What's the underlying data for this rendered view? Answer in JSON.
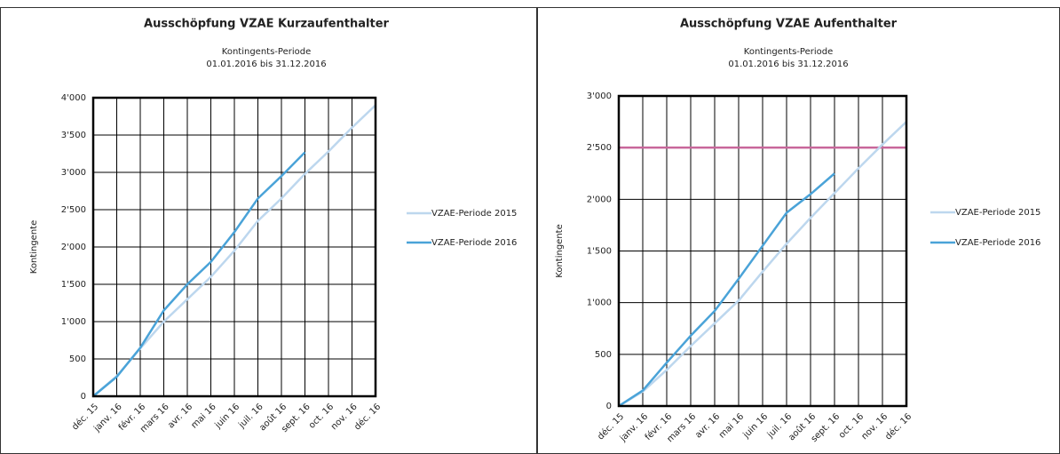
{
  "chart_data": [
    {
      "type": "line",
      "title": "Ausschöpfung VZAE Kurzaufenthalter",
      "subtitle": [
        "Kontingents-Periode",
        "01.01.2016 bis 31.12.2016"
      ],
      "y_label": "Kontingente",
      "categories": [
        "déc. 15",
        "janv. 16",
        "févr. 16",
        "mars 16",
        "avr. 16",
        "mai 16",
        "juin 16",
        "juil. 16",
        "août 16",
        "sept. 16",
        "oct. 16",
        "nov. 16",
        "déc. 16"
      ],
      "series": [
        {
          "name": "VZAE-Periode 2015",
          "color": "#bdd7ee",
          "values": [
            0,
            270,
            640,
            1000,
            1300,
            1600,
            1950,
            2350,
            2650,
            2980,
            3280,
            3600,
            3900
          ]
        },
        {
          "name": "VZAE-Periode 2016",
          "color": "#4aa3d8",
          "values": [
            0,
            260,
            650,
            1150,
            1500,
            1800,
            2200,
            2650,
            2950,
            3270,
            null,
            null,
            null
          ]
        }
      ],
      "ylim": [
        0,
        4000
      ],
      "yticks": [
        0,
        500,
        {
          "value": 1000,
          "label": "1'000"
        },
        {
          "value": 1500,
          "label": "1'500"
        },
        {
          "value": 2000,
          "label": "2'000"
        },
        {
          "value": 2500,
          "label": "2'500"
        },
        {
          "value": 3000,
          "label": "3'000"
        },
        {
          "value": 3500,
          "label": "3'500"
        },
        {
          "value": 4000,
          "label": "4'000"
        }
      ],
      "grid": true,
      "legend": "right"
    },
    {
      "type": "line",
      "title": "Ausschöpfung VZAE Aufenthalter",
      "subtitle": [
        "Kontingents-Periode",
        "01.01.2016 bis 31.12.2016"
      ],
      "y_label": "Kontingente",
      "categories": [
        "déc. 15",
        "janv. 16",
        "févr. 16",
        "mars 16",
        "avr. 16",
        "mai 16",
        "juin 16",
        "juil. 16",
        "août 16",
        "sept. 16",
        "oct. 16",
        "nov. 16",
        "déc. 16"
      ],
      "series": [
        {
          "name": "VZAE-Periode 2015",
          "color": "#bdd7ee",
          "values": [
            0,
            140,
            350,
            580,
            800,
            1020,
            1300,
            1570,
            1820,
            2060,
            2300,
            2530,
            2750
          ]
        },
        {
          "name": "VZAE-Periode 2016",
          "color": "#4aa3d8",
          "values": [
            0,
            150,
            420,
            680,
            920,
            1230,
            1550,
            1870,
            2050,
            2250,
            null,
            null,
            null
          ]
        }
      ],
      "reference_line": {
        "value": 2500,
        "color": "#c8679b"
      },
      "ylim": [
        0,
        3000
      ],
      "yticks": [
        0,
        500,
        {
          "value": 1000,
          "label": "1'000"
        },
        {
          "value": 1500,
          "label": "1'500"
        },
        {
          "value": 2000,
          "label": "2'000"
        },
        {
          "value": 2500,
          "label": "2'500"
        },
        {
          "value": 3000,
          "label": "3'000"
        }
      ],
      "grid": true,
      "legend": "right"
    }
  ]
}
